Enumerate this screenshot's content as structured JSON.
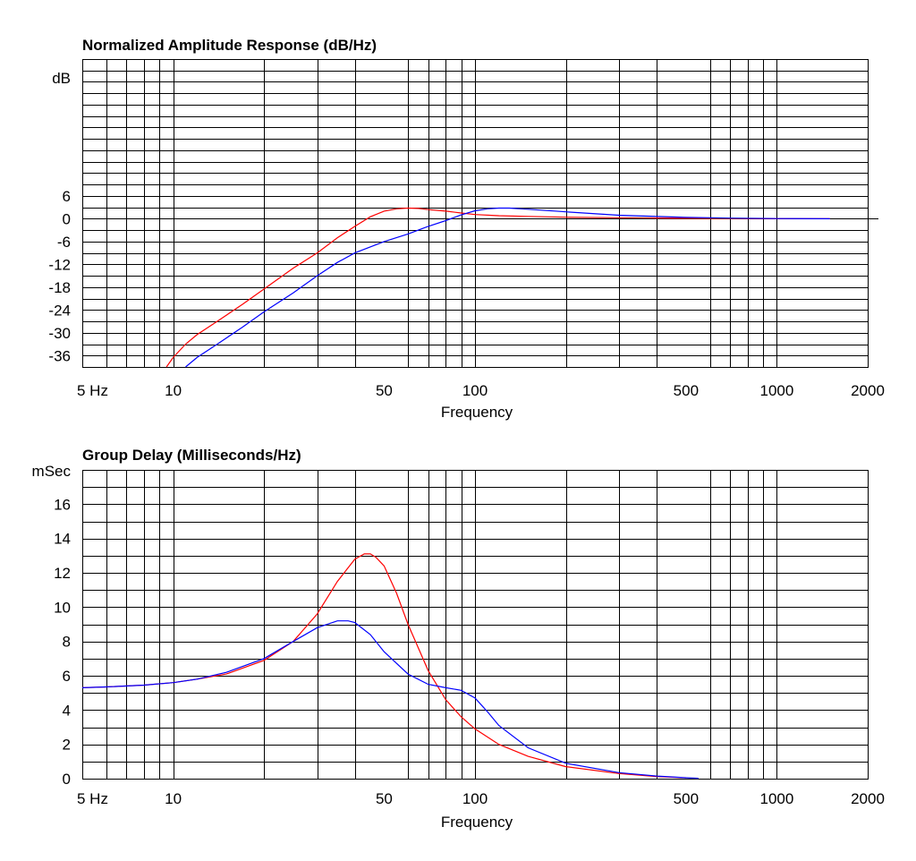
{
  "chart_data": [
    {
      "type": "line",
      "title": "Normalized Amplitude Response (dB/Hz)",
      "xlabel": "Frequency",
      "ylabel": "dB",
      "x_scale": "log",
      "xlim": [
        5,
        2000
      ],
      "ylim": [
        -39,
        42
      ],
      "x_ticks": [
        5,
        10,
        50,
        100,
        500,
        1000,
        2000
      ],
      "x_tick_labels": [
        "5  Hz",
        "10",
        "50",
        "100",
        "500",
        "1000",
        "2000"
      ],
      "y_ticks": [
        6,
        0,
        -6,
        -12,
        -18,
        -24,
        -30,
        -36
      ],
      "y_tick_labels": [
        "6",
        "0",
        "-6",
        "-12",
        "-18",
        "-24",
        "-30",
        "-36"
      ],
      "grid": true,
      "zero_line_to": 2800,
      "series": [
        {
          "color": "#ff0000",
          "x": [
            9.5,
            10,
            11,
            12,
            14,
            17,
            20,
            25,
            30,
            35,
            40,
            45,
            50,
            55,
            60,
            65,
            70,
            80,
            90,
            100,
            120,
            150,
            200,
            300,
            500,
            700,
            1000,
            1500
          ],
          "y": [
            -39,
            -36.5,
            -33,
            -30.5,
            -27,
            -22.5,
            -18.5,
            -13,
            -9,
            -5,
            -2,
            0.5,
            2,
            2.6,
            2.8,
            2.7,
            2.4,
            2,
            1.5,
            1.1,
            0.8,
            0.6,
            0.4,
            0.25,
            0.1,
            0.05,
            0.02,
            0
          ]
        },
        {
          "color": "#0000ff",
          "x": [
            11,
            12,
            14,
            17,
            20,
            25,
            30,
            35,
            40,
            50,
            60,
            70,
            80,
            90,
            100,
            110,
            120,
            130,
            150,
            200,
            300,
            500,
            700,
            1000,
            1500
          ],
          "y": [
            -39,
            -36.5,
            -33,
            -28.5,
            -24.5,
            -19.5,
            -15,
            -11.5,
            -9,
            -6,
            -4,
            -2,
            -0.5,
            1,
            2.1,
            2.6,
            2.8,
            2.8,
            2.5,
            1.8,
            0.9,
            0.35,
            0.15,
            0.05,
            0
          ]
        }
      ]
    },
    {
      "type": "line",
      "title": "Group Delay (Milliseconds/Hz)",
      "xlabel": "Frequency",
      "ylabel": "mSec",
      "x_scale": "log",
      "xlim": [
        5,
        2000
      ],
      "ylim": [
        0,
        18
      ],
      "x_ticks": [
        5,
        10,
        50,
        100,
        500,
        1000,
        2000
      ],
      "x_tick_labels": [
        "5  Hz",
        "10",
        "50",
        "100",
        "500",
        "1000",
        "2000"
      ],
      "y_ticks": [
        16,
        14,
        12,
        10,
        8,
        6,
        4,
        2,
        0
      ],
      "y_tick_labels": [
        "16",
        "14",
        "12",
        "10",
        "8",
        "6",
        "4",
        "2",
        "0"
      ],
      "grid": true,
      "series": [
        {
          "color": "#ff0000",
          "x": [
            5,
            6,
            8,
            10,
            12,
            15,
            20,
            25,
            30,
            35,
            40,
            43,
            45,
            47,
            50,
            55,
            60,
            70,
            80,
            90,
            100,
            120,
            150,
            200,
            300,
            400,
            500
          ],
          "y": [
            5.3,
            5.35,
            5.45,
            5.6,
            5.8,
            6.1,
            6.9,
            8.0,
            9.6,
            11.5,
            12.8,
            13.1,
            13.1,
            12.9,
            12.4,
            10.8,
            9.0,
            6.3,
            4.6,
            3.6,
            2.9,
            2.0,
            1.3,
            0.7,
            0.3,
            0.12,
            0.05
          ]
        },
        {
          "color": "#0000ff",
          "x": [
            5,
            6,
            8,
            10,
            12,
            15,
            20,
            25,
            30,
            35,
            38,
            40,
            45,
            50,
            60,
            70,
            80,
            90,
            100,
            110,
            120,
            150,
            200,
            300,
            400,
            500,
            550
          ],
          "y": [
            5.3,
            5.35,
            5.45,
            5.6,
            5.8,
            6.2,
            7.0,
            8.0,
            8.8,
            9.2,
            9.2,
            9.1,
            8.4,
            7.4,
            6.1,
            5.5,
            5.3,
            5.15,
            4.7,
            3.9,
            3.1,
            1.8,
            0.9,
            0.35,
            0.15,
            0.05,
            0.02
          ]
        }
      ]
    }
  ]
}
